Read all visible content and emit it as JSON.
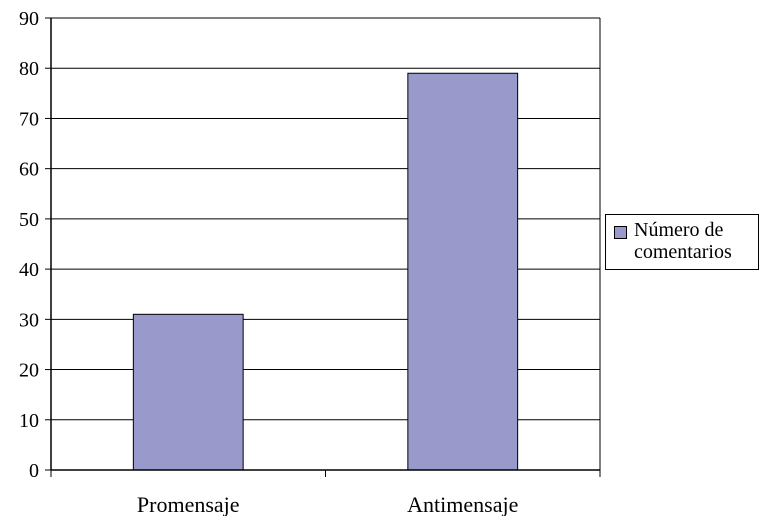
{
  "chart_data": {
    "type": "bar",
    "categories": [
      "Promensaje",
      "Antimensaje"
    ],
    "series": [
      {
        "name": "Número de comentarios",
        "values": [
          31,
          79
        ],
        "color": "#9999cc"
      }
    ],
    "ylim": [
      0,
      90
    ],
    "yticks": [
      0,
      10,
      20,
      30,
      40,
      50,
      60,
      70,
      80,
      90
    ],
    "grid": true,
    "legend_position": "right",
    "title": "",
    "xlabel": "",
    "ylabel": ""
  }
}
